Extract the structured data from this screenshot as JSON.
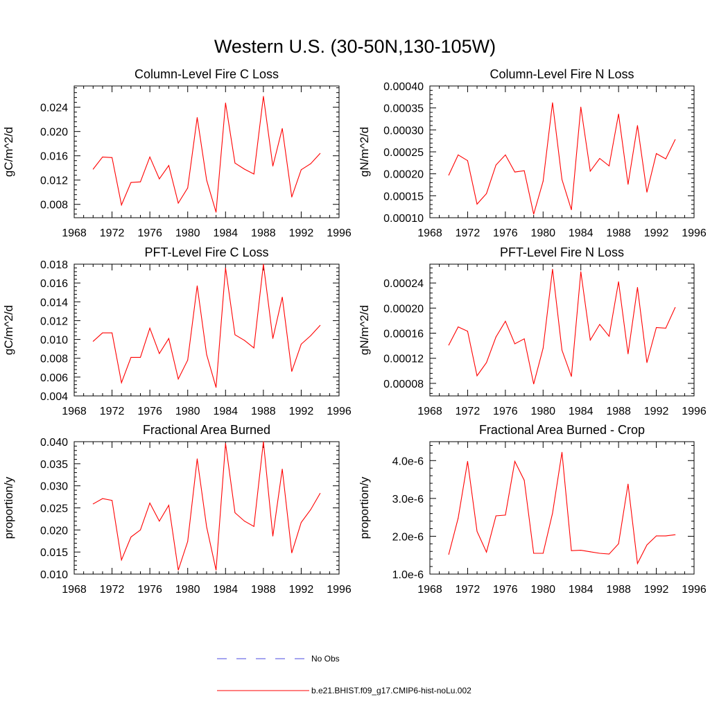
{
  "figure": {
    "title": "Western U.S. (30-50N,130-105W)"
  },
  "legend": [
    {
      "label": "No Obs",
      "color": "#4a4ae0",
      "style": "dashed"
    },
    {
      "label": "b.e21.BHIST.f09_g17.CMIP6-hist-noLu.002",
      "color": "#ff0000",
      "style": "solid"
    }
  ],
  "chart_data": [
    {
      "type": "line",
      "title": "Column-Level Fire C Loss",
      "ylabel": "gC/m^2/d",
      "xlim": [
        1968,
        1996
      ],
      "ylim": [
        0.0058,
        0.0275
      ],
      "x_ticks": [
        1968,
        1972,
        1976,
        1980,
        1984,
        1988,
        1992,
        1996
      ],
      "y_ticks": [
        0.008,
        0.012,
        0.016,
        0.02,
        0.024
      ],
      "y_tick_labels": [
        "0.008",
        "0.012",
        "0.016",
        "0.020",
        "0.024"
      ],
      "x": [
        1970,
        1971,
        1972,
        1973,
        1974,
        1975,
        1976,
        1977,
        1978,
        1979,
        1980,
        1981,
        1982,
        1983,
        1984,
        1985,
        1986,
        1987,
        1988,
        1989,
        1990,
        1991,
        1992,
        1993,
        1994
      ],
      "series": [
        {
          "name": "b.e21.BHIST.f09_g17.CMIP6-hist-noLu.002",
          "color": "#ff0000",
          "values": [
            0.0138,
            0.0158,
            0.0157,
            0.0079,
            0.0116,
            0.0117,
            0.0158,
            0.0122,
            0.0144,
            0.0082,
            0.0107,
            0.0223,
            0.012,
            0.0067,
            0.0247,
            0.0148,
            0.0138,
            0.013,
            0.0258,
            0.0143,
            0.0205,
            0.0092,
            0.0137,
            0.0147,
            0.0164
          ]
        }
      ]
    },
    {
      "type": "line",
      "title": "Column-Level Fire N Loss",
      "ylabel": "gN/m^2/d",
      "xlim": [
        1968,
        1996
      ],
      "ylim": [
        0.0001,
        0.0004
      ],
      "x_ticks": [
        1968,
        1972,
        1976,
        1980,
        1984,
        1988,
        1992,
        1996
      ],
      "y_ticks": [
        0.0001,
        0.00015,
        0.0002,
        0.00025,
        0.0003,
        0.00035,
        0.0004
      ],
      "y_tick_labels": [
        "0.00010",
        "0.00015",
        "0.00020",
        "0.00025",
        "0.00030",
        "0.00035",
        "0.00040"
      ],
      "x": [
        1970,
        1971,
        1972,
        1973,
        1974,
        1975,
        1976,
        1977,
        1978,
        1979,
        1980,
        1981,
        1982,
        1983,
        1984,
        1985,
        1986,
        1987,
        1988,
        1989,
        1990,
        1991,
        1992,
        1993,
        1994
      ],
      "series": [
        {
          "name": "b.e21.BHIST.f09_g17.CMIP6-hist-noLu.002",
          "color": "#ff0000",
          "values": [
            0.000197,
            0.000243,
            0.00023,
            0.000131,
            0.000155,
            0.00022,
            0.000243,
            0.000204,
            0.000207,
            0.000108,
            0.000183,
            0.000362,
            0.000187,
            0.000118,
            0.000352,
            0.000206,
            0.000235,
            0.000218,
            0.000336,
            0.000176,
            0.00031,
            0.000158,
            0.000246,
            0.000234,
            0.000278
          ]
        }
      ]
    },
    {
      "type": "line",
      "title": "PFT-Level Fire C Loss",
      "ylabel": "gC/m^2/d",
      "xlim": [
        1968,
        1996
      ],
      "ylim": [
        0.004,
        0.018
      ],
      "x_ticks": [
        1968,
        1972,
        1976,
        1980,
        1984,
        1988,
        1992,
        1996
      ],
      "y_ticks": [
        0.004,
        0.006,
        0.008,
        0.01,
        0.012,
        0.014,
        0.016,
        0.018
      ],
      "y_tick_labels": [
        "0.004",
        "0.006",
        "0.008",
        "0.010",
        "0.012",
        "0.014",
        "0.016",
        "0.018"
      ],
      "x": [
        1970,
        1971,
        1972,
        1973,
        1974,
        1975,
        1976,
        1977,
        1978,
        1979,
        1980,
        1981,
        1982,
        1983,
        1984,
        1985,
        1986,
        1987,
        1988,
        1989,
        1990,
        1991,
        1992,
        1993,
        1994
      ],
      "series": [
        {
          "name": "b.e21.BHIST.f09_g17.CMIP6-hist-noLu.002",
          "color": "#ff0000",
          "values": [
            0.0098,
            0.0107,
            0.0107,
            0.0054,
            0.0081,
            0.0081,
            0.0112,
            0.0085,
            0.0101,
            0.0058,
            0.0078,
            0.0157,
            0.0084,
            0.0049,
            0.0176,
            0.0105,
            0.0099,
            0.0091,
            0.018,
            0.0101,
            0.0145,
            0.0066,
            0.0095,
            0.0104,
            0.0115
          ]
        }
      ]
    },
    {
      "type": "line",
      "title": "PFT-Level Fire N Loss",
      "ylabel": "gN/m^2/d",
      "xlim": [
        1968,
        1996
      ],
      "ylim": [
        6e-05,
        0.00027
      ],
      "x_ticks": [
        1968,
        1972,
        1976,
        1980,
        1984,
        1988,
        1992,
        1996
      ],
      "y_ticks": [
        8e-05,
        0.00012,
        0.00016,
        0.0002,
        0.00024
      ],
      "y_tick_labels": [
        "0.00008",
        "0.00012",
        "0.00016",
        "0.00020",
        "0.00024"
      ],
      "x": [
        1970,
        1971,
        1972,
        1973,
        1974,
        1975,
        1976,
        1977,
        1978,
        1979,
        1980,
        1981,
        1982,
        1983,
        1984,
        1985,
        1986,
        1987,
        1988,
        1989,
        1990,
        1991,
        1992,
        1993,
        1994
      ],
      "series": [
        {
          "name": "b.e21.BHIST.f09_g17.CMIP6-hist-noLu.002",
          "color": "#ff0000",
          "values": [
            0.000141,
            0.00017,
            0.000163,
            9.2e-05,
            0.000113,
            0.000154,
            0.000179,
            0.000143,
            0.000151,
            7.9e-05,
            0.000136,
            0.000262,
            0.000133,
            9.1e-05,
            0.000258,
            0.000149,
            0.000174,
            0.000155,
            0.000242,
            0.000127,
            0.000233,
            0.000113,
            0.000169,
            0.000168,
            0.000201
          ]
        }
      ]
    },
    {
      "type": "line",
      "title": "Fractional Area Burned",
      "ylabel": "proportion/y",
      "xlim": [
        1968,
        1996
      ],
      "ylim": [
        0.01,
        0.04
      ],
      "x_ticks": [
        1968,
        1972,
        1976,
        1980,
        1984,
        1988,
        1992,
        1996
      ],
      "y_ticks": [
        0.01,
        0.015,
        0.02,
        0.025,
        0.03,
        0.035,
        0.04
      ],
      "y_tick_labels": [
        "0.010",
        "0.015",
        "0.020",
        "0.025",
        "0.030",
        "0.035",
        "0.040"
      ],
      "x": [
        1970,
        1971,
        1972,
        1973,
        1974,
        1975,
        1976,
        1977,
        1978,
        1979,
        1980,
        1981,
        1982,
        1983,
        1984,
        1985,
        1986,
        1987,
        1988,
        1989,
        1990,
        1991,
        1992,
        1993,
        1994
      ],
      "series": [
        {
          "name": "b.e21.BHIST.f09_g17.CMIP6-hist-noLu.002",
          "color": "#ff0000",
          "values": [
            0.0259,
            0.0271,
            0.0267,
            0.0132,
            0.0184,
            0.02,
            0.0261,
            0.022,
            0.0256,
            0.0109,
            0.0174,
            0.0361,
            0.0207,
            0.0109,
            0.0396,
            0.0239,
            0.022,
            0.0208,
            0.04,
            0.0186,
            0.0338,
            0.0148,
            0.0217,
            0.0246,
            0.0283
          ]
        }
      ]
    },
    {
      "type": "line",
      "title": "Fractional Area Burned - Crop",
      "ylabel": "proportion/y",
      "xlim": [
        1968,
        1996
      ],
      "ylim": [
        1e-06,
        4.5e-06
      ],
      "x_ticks": [
        1968,
        1972,
        1976,
        1980,
        1984,
        1988,
        1992,
        1996
      ],
      "y_ticks": [
        1e-06,
        2e-06,
        3e-06,
        4e-06
      ],
      "y_tick_labels": [
        "1.0e-6",
        "2.0e-6",
        "3.0e-6",
        "4.0e-6"
      ],
      "x": [
        1970,
        1971,
        1972,
        1973,
        1974,
        1975,
        1976,
        1977,
        1978,
        1979,
        1980,
        1981,
        1982,
        1983,
        1984,
        1985,
        1986,
        1987,
        1988,
        1989,
        1990,
        1991,
        1992,
        1993,
        1994
      ],
      "series": [
        {
          "name": "b.e21.BHIST.f09_g17.CMIP6-hist-noLu.002",
          "color": "#ff0000",
          "values": [
            1.52e-06,
            2.48e-06,
            3.98e-06,
            2.13e-06,
            1.58e-06,
            2.54e-06,
            2.56e-06,
            3.98e-06,
            3.48e-06,
            1.55e-06,
            1.55e-06,
            2.61e-06,
            4.22e-06,
            1.62e-06,
            1.63e-06,
            1.59e-06,
            1.55e-06,
            1.53e-06,
            1.8e-06,
            3.38e-06,
            1.28e-06,
            1.77e-06,
            2.01e-06,
            2.01e-06,
            2.04e-06
          ]
        }
      ]
    }
  ]
}
